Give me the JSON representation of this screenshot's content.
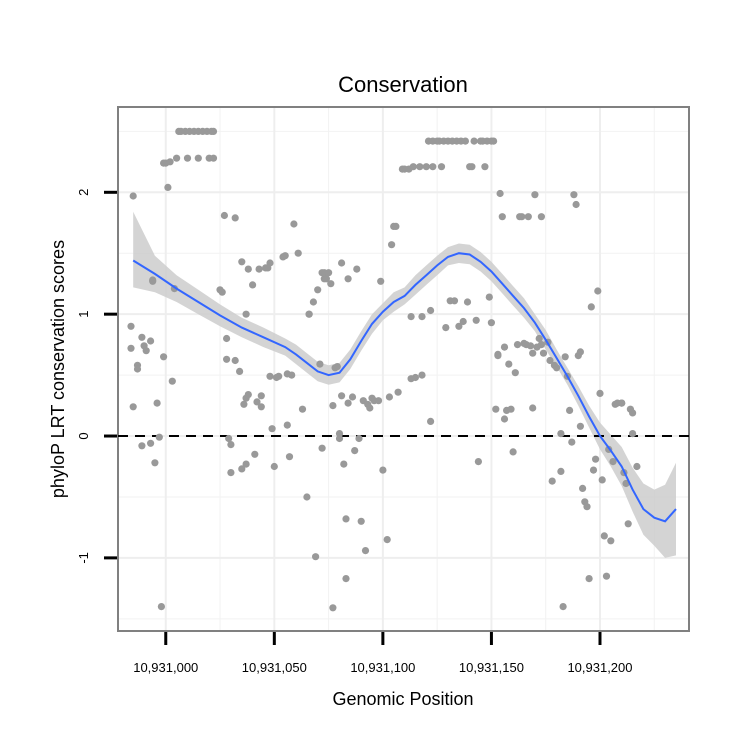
{
  "chart_data": {
    "type": "scatter",
    "title": "Conservation",
    "xlabel": "Genomic Position",
    "ylabel": "phyloP LRT conservation scores",
    "xlim": [
      10930978,
      10931241
    ],
    "ylim": [
      -1.6,
      2.7
    ],
    "x_ticks": [
      10931000,
      10931050,
      10931100,
      10931150,
      10931200
    ],
    "x_tick_labels": [
      "10,931,000",
      "10,931,050",
      "10,931,100",
      "10,931,150",
      "10,931,200"
    ],
    "y_ticks": [
      -1,
      0,
      1,
      2
    ],
    "y_tick_labels": [
      "-1",
      "0",
      "1",
      "2"
    ],
    "reference_line": {
      "y": 0,
      "style": "dashed"
    },
    "colors": {
      "points": "#999999",
      "smooth_line": "#3366ff",
      "ribbon": "#cccccc",
      "panel_border": "#808080",
      "grid": "#f2f2f2"
    },
    "points": [
      [
        10930984,
        0.9
      ],
      [
        10930984,
        0.72
      ],
      [
        10930985,
        1.97
      ],
      [
        10930985,
        0.24
      ],
      [
        10930987,
        0.58
      ],
      [
        10930987,
        0.55
      ],
      [
        10930989,
        0.81
      ],
      [
        10930989,
        -0.08
      ],
      [
        10930990,
        0.74
      ],
      [
        10930991,
        0.7
      ],
      [
        10930993,
        0.78
      ],
      [
        10930993,
        -0.06
      ],
      [
        10930994,
        1.28
      ],
      [
        10930994,
        1.27
      ],
      [
        10930995,
        -0.22
      ],
      [
        10930996,
        0.27
      ],
      [
        10930997,
        -0.01
      ],
      [
        10930998,
        -1.4
      ],
      [
        10930999,
        2.24
      ],
      [
        10930999,
        0.65
      ],
      [
        10931000,
        2.24
      ],
      [
        10931001,
        2.04
      ],
      [
        10931002,
        2.25
      ],
      [
        10931003,
        0.45
      ],
      [
        10931004,
        1.21
      ],
      [
        10931005,
        2.28
      ],
      [
        10931006,
        2.5
      ],
      [
        10931007,
        2.5
      ],
      [
        10931009,
        2.5
      ],
      [
        10931010,
        2.28
      ],
      [
        10931011,
        2.5
      ],
      [
        10931013,
        2.5
      ],
      [
        10931015,
        2.28
      ],
      [
        10931015,
        2.5
      ],
      [
        10931017,
        2.5
      ],
      [
        10931019,
        2.5
      ],
      [
        10931020,
        2.28
      ],
      [
        10931021,
        2.5
      ],
      [
        10931022,
        2.28
      ],
      [
        10931022,
        2.5
      ],
      [
        10931025,
        1.2
      ],
      [
        10931026,
        1.18
      ],
      [
        10931027,
        1.81
      ],
      [
        10931028,
        0.63
      ],
      [
        10931028,
        0.8
      ],
      [
        10931029,
        -0.02
      ],
      [
        10931030,
        -0.3
      ],
      [
        10931030,
        -0.07
      ],
      [
        10931032,
        1.79
      ],
      [
        10931032,
        0.62
      ],
      [
        10931034,
        0.53
      ],
      [
        10931035,
        1.43
      ],
      [
        10931035,
        -0.27
      ],
      [
        10931036,
        0.26
      ],
      [
        10931037,
        -0.23
      ],
      [
        10931037,
        1.0
      ],
      [
        10931037,
        0.31
      ],
      [
        10931038,
        1.37
      ],
      [
        10931038,
        0.34
      ],
      [
        10931040,
        1.24
      ],
      [
        10931041,
        -0.15
      ],
      [
        10931042,
        0.28
      ],
      [
        10931043,
        1.37
      ],
      [
        10931044,
        0.24
      ],
      [
        10931044,
        0.33
      ],
      [
        10931046,
        1.38
      ],
      [
        10931047,
        1.38
      ],
      [
        10931048,
        1.42
      ],
      [
        10931048,
        0.49
      ],
      [
        10931049,
        0.06
      ],
      [
        10931050,
        -0.25
      ],
      [
        10931051,
        0.48
      ],
      [
        10931052,
        0.49
      ],
      [
        10931054,
        1.47
      ],
      [
        10931055,
        1.48
      ],
      [
        10931056,
        0.51
      ],
      [
        10931056,
        0.09
      ],
      [
        10931057,
        -0.17
      ],
      [
        10931058,
        0.5
      ],
      [
        10931059,
        1.74
      ],
      [
        10931061,
        1.5
      ],
      [
        10931063,
        0.22
      ],
      [
        10931065,
        -0.5
      ],
      [
        10931066,
        1.0
      ],
      [
        10931066,
        1.0
      ],
      [
        10931068,
        1.1
      ],
      [
        10931069,
        -0.99
      ],
      [
        10931070,
        1.2
      ],
      [
        10931071,
        0.59
      ],
      [
        10931072,
        1.34
      ],
      [
        10931072,
        -0.1
      ],
      [
        10931073,
        1.29
      ],
      [
        10931073,
        1.34
      ],
      [
        10931074,
        1.29
      ],
      [
        10931075,
        1.34
      ],
      [
        10931076,
        1.25
      ],
      [
        10931077,
        -1.41
      ],
      [
        10931077,
        0.25
      ],
      [
        10931078,
        0.56
      ],
      [
        10931079,
        0.57
      ],
      [
        10931080,
        0.02
      ],
      [
        10931080,
        -0.02
      ],
      [
        10931081,
        1.42
      ],
      [
        10931081,
        0.33
      ],
      [
        10931082,
        -0.23
      ],
      [
        10931083,
        -0.68
      ],
      [
        10931083,
        -1.17
      ],
      [
        10931084,
        1.29
      ],
      [
        10931084,
        0.27
      ],
      [
        10931086,
        0.32
      ],
      [
        10931087,
        -0.12
      ],
      [
        10931088,
        1.37
      ],
      [
        10931089,
        -0.02
      ],
      [
        10931090,
        -0.7
      ],
      [
        10931091,
        0.29
      ],
      [
        10931092,
        -0.94
      ],
      [
        10931093,
        0.26
      ],
      [
        10931094,
        0.23
      ],
      [
        10931095,
        0.31
      ],
      [
        10931096,
        0.29
      ],
      [
        10931098,
        0.29
      ],
      [
        10931099,
        1.27
      ],
      [
        10931100,
        -0.28
      ],
      [
        10931102,
        -0.85
      ],
      [
        10931103,
        0.32
      ],
      [
        10931104,
        1.57
      ],
      [
        10931105,
        1.72
      ],
      [
        10931106,
        1.72
      ],
      [
        10931107,
        0.36
      ],
      [
        10931109,
        2.19
      ],
      [
        10931110,
        2.19
      ],
      [
        10931112,
        2.19
      ],
      [
        10931113,
        0.47
      ],
      [
        10931113,
        0.98
      ],
      [
        10931114,
        2.21
      ],
      [
        10931115,
        0.48
      ],
      [
        10931117,
        2.21
      ],
      [
        10931118,
        0.5
      ],
      [
        10931118,
        0.98
      ],
      [
        10931120,
        2.21
      ],
      [
        10931121,
        2.42
      ],
      [
        10931122,
        1.03
      ],
      [
        10931122,
        0.12
      ],
      [
        10931123,
        2.42
      ],
      [
        10931123,
        2.21
      ],
      [
        10931125,
        2.42
      ],
      [
        10931126,
        2.42
      ],
      [
        10931127,
        2.21
      ],
      [
        10931128,
        2.42
      ],
      [
        10931129,
        0.89
      ],
      [
        10931130,
        2.42
      ],
      [
        10931131,
        1.11
      ],
      [
        10931132,
        2.42
      ],
      [
        10931133,
        1.11
      ],
      [
        10931134,
        2.42
      ],
      [
        10931135,
        0.9
      ],
      [
        10931136,
        2.42
      ],
      [
        10931137,
        0.94
      ],
      [
        10931138,
        2.42
      ],
      [
        10931139,
        1.1
      ],
      [
        10931140,
        2.21
      ],
      [
        10931141,
        2.21
      ],
      [
        10931142,
        2.42
      ],
      [
        10931143,
        0.95
      ],
      [
        10931144,
        -0.21
      ],
      [
        10931145,
        2.42
      ],
      [
        10931146,
        2.42
      ],
      [
        10931147,
        2.21
      ],
      [
        10931148,
        2.42
      ],
      [
        10931149,
        1.14
      ],
      [
        10931150,
        0.93
      ],
      [
        10931150,
        2.42
      ],
      [
        10931151,
        2.42
      ],
      [
        10931152,
        0.22
      ],
      [
        10931153,
        0.67
      ],
      [
        10931153,
        0.66
      ],
      [
        10931154,
        1.99
      ],
      [
        10931155,
        1.8
      ],
      [
        10931156,
        0.73
      ],
      [
        10931156,
        0.14
      ],
      [
        10931157,
        0.21
      ],
      [
        10931158,
        0.59
      ],
      [
        10931159,
        0.22
      ],
      [
        10931160,
        -0.13
      ],
      [
        10931161,
        0.52
      ],
      [
        10931162,
        0.75
      ],
      [
        10931163,
        1.8
      ],
      [
        10931164,
        1.8
      ],
      [
        10931165,
        0.76
      ],
      [
        10931166,
        0.75
      ],
      [
        10931167,
        1.8
      ],
      [
        10931168,
        0.74
      ],
      [
        10931169,
        0.23
      ],
      [
        10931169,
        0.68
      ],
      [
        10931170,
        1.98
      ],
      [
        10931171,
        0.73
      ],
      [
        10931172,
        0.8
      ],
      [
        10931173,
        0.75
      ],
      [
        10931173,
        1.8
      ],
      [
        10931174,
        0.68
      ],
      [
        10931176,
        0.77
      ],
      [
        10931177,
        0.62
      ],
      [
        10931178,
        -0.37
      ],
      [
        10931179,
        0.58
      ],
      [
        10931180,
        0.56
      ],
      [
        10931182,
        0.02
      ],
      [
        10931182,
        -0.29
      ],
      [
        10931183,
        -1.4
      ],
      [
        10931184,
        0.65
      ],
      [
        10931185,
        0.49
      ],
      [
        10931186,
        0.21
      ],
      [
        10931187,
        -0.05
      ],
      [
        10931188,
        1.98
      ],
      [
        10931189,
        1.9
      ],
      [
        10931190,
        0.66
      ],
      [
        10931191,
        0.69
      ],
      [
        10931191,
        0.08
      ],
      [
        10931192,
        -0.43
      ],
      [
        10931193,
        -0.54
      ],
      [
        10931194,
        -0.58
      ],
      [
        10931195,
        -1.17
      ],
      [
        10931196,
        1.06
      ],
      [
        10931197,
        -0.28
      ],
      [
        10931198,
        -0.19
      ],
      [
        10931199,
        1.19
      ],
      [
        10931200,
        0.35
      ],
      [
        10931201,
        -0.36
      ],
      [
        10931202,
        -0.82
      ],
      [
        10931203,
        -1.15
      ],
      [
        10931204,
        -0.11
      ],
      [
        10931205,
        -0.86
      ],
      [
        10931206,
        -0.21
      ],
      [
        10931207,
        0.26
      ],
      [
        10931208,
        0.27
      ],
      [
        10931210,
        0.27
      ],
      [
        10931210,
        0.27
      ],
      [
        10931211,
        -0.3
      ],
      [
        10931212,
        -0.39
      ],
      [
        10931213,
        -0.72
      ],
      [
        10931214,
        0.22
      ],
      [
        10931215,
        0.19
      ],
      [
        10931215,
        0.02
      ],
      [
        10931217,
        -0.25
      ]
    ],
    "smooth_fit": {
      "x": [
        10930985,
        10930995,
        10931005,
        10931015,
        10931025,
        10931035,
        10931045,
        10931055,
        10931060,
        10931065,
        10931070,
        10931075,
        10931080,
        10931085,
        10931090,
        10931095,
        10931100,
        10931105,
        10931110,
        10931115,
        10931120,
        10931125,
        10931130,
        10931135,
        10931140,
        10931145,
        10931150,
        10931155,
        10931160,
        10931165,
        10931170,
        10931175,
        10931180,
        10931185,
        10931190,
        10931195,
        10931200,
        10931205,
        10931210,
        10931215,
        10931220,
        10931225,
        10931230,
        10931235
      ],
      "y": [
        1.44,
        1.33,
        1.21,
        1.1,
        0.99,
        0.89,
        0.81,
        0.73,
        0.67,
        0.6,
        0.53,
        0.5,
        0.52,
        0.63,
        0.78,
        0.92,
        1.02,
        1.1,
        1.15,
        1.24,
        1.32,
        1.4,
        1.47,
        1.5,
        1.49,
        1.43,
        1.35,
        1.25,
        1.15,
        1.05,
        0.93,
        0.79,
        0.64,
        0.49,
        0.33,
        0.16,
        -0.0,
        -0.12,
        -0.25,
        -0.44,
        -0.6,
        -0.67,
        -0.7,
        -0.6
      ],
      "lower": [
        1.22,
        1.18,
        1.1,
        1.0,
        0.9,
        0.81,
        0.73,
        0.66,
        0.59,
        0.52,
        0.45,
        0.42,
        0.44,
        0.55,
        0.7,
        0.84,
        0.95,
        1.02,
        1.08,
        1.16,
        1.24,
        1.32,
        1.4,
        1.42,
        1.41,
        1.35,
        1.27,
        1.17,
        1.07,
        0.97,
        0.86,
        0.71,
        0.57,
        0.42,
        0.25,
        0.07,
        -0.11,
        -0.25,
        -0.41,
        -0.62,
        -0.81,
        -0.9,
        -1.0,
        -0.98
      ],
      "upper": [
        1.84,
        1.48,
        1.32,
        1.2,
        1.08,
        0.97,
        0.89,
        0.8,
        0.75,
        0.68,
        0.61,
        0.58,
        0.6,
        0.71,
        0.86,
        1.0,
        1.09,
        1.18,
        1.22,
        1.32,
        1.4,
        1.48,
        1.55,
        1.58,
        1.57,
        1.51,
        1.43,
        1.33,
        1.23,
        1.13,
        1.0,
        0.87,
        0.71,
        0.56,
        0.41,
        0.25,
        0.11,
        0.01,
        -0.09,
        -0.26,
        -0.39,
        -0.44,
        -0.4,
        -0.22
      ]
    }
  }
}
